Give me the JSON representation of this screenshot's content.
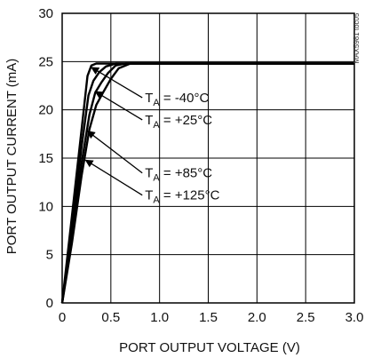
{
  "chart_data": {
    "type": "line",
    "title": "",
    "xlabel": "PORT OUTPUT VOLTAGE (V)",
    "ylabel": "PORT OUTPUT CURRENT (mA)",
    "xlim": [
      0,
      3.0
    ],
    "ylim": [
      0,
      30
    ],
    "x_ticks": [
      "0",
      "0.5",
      "1.0",
      "1.5",
      "2.0",
      "2.5",
      "3.0"
    ],
    "y_ticks": [
      "0",
      "5",
      "10",
      "15",
      "20",
      "25",
      "30"
    ],
    "grid": true,
    "series": [
      {
        "name": "T_A = -40°C",
        "points": [
          [
            0,
            0
          ],
          [
            0.1,
            9.0
          ],
          [
            0.2,
            18.0
          ],
          [
            0.26,
            23.5
          ],
          [
            0.3,
            24.6
          ],
          [
            0.35,
            24.8
          ],
          [
            0.5,
            24.8
          ],
          [
            1.0,
            24.8
          ],
          [
            2.0,
            24.8
          ],
          [
            3.0,
            24.8
          ]
        ]
      },
      {
        "name": "T_A = +25°C",
        "points": [
          [
            0,
            0
          ],
          [
            0.1,
            8.0
          ],
          [
            0.2,
            16.2
          ],
          [
            0.27,
            21.5
          ],
          [
            0.32,
            23.0
          ],
          [
            0.38,
            23.9
          ],
          [
            0.45,
            24.5
          ],
          [
            0.55,
            24.8
          ],
          [
            1.0,
            24.8
          ],
          [
            2.0,
            24.8
          ],
          [
            3.0,
            24.8
          ]
        ]
      },
      {
        "name": "T_A = +85°C",
        "points": [
          [
            0,
            0
          ],
          [
            0.1,
            7.0
          ],
          [
            0.2,
            14.5
          ],
          [
            0.28,
            19.5
          ],
          [
            0.34,
            21.8
          ],
          [
            0.4,
            22.8
          ],
          [
            0.47,
            23.8
          ],
          [
            0.55,
            24.6
          ],
          [
            0.65,
            24.8
          ],
          [
            1.0,
            24.8
          ],
          [
            2.0,
            24.8
          ],
          [
            3.0,
            24.8
          ]
        ]
      },
      {
        "name": "T_A = +125°C",
        "points": [
          [
            0,
            0
          ],
          [
            0.1,
            6.2
          ],
          [
            0.2,
            13.2
          ],
          [
            0.28,
            18.0
          ],
          [
            0.35,
            20.5
          ],
          [
            0.42,
            21.8
          ],
          [
            0.5,
            23.2
          ],
          [
            0.58,
            24.3
          ],
          [
            0.7,
            24.8
          ],
          [
            1.0,
            24.8
          ],
          [
            2.0,
            24.8
          ],
          [
            3.0,
            24.8
          ]
        ]
      }
    ],
    "annotations": [
      {
        "main": "T",
        "sub": "A",
        "rest": " = -40°C",
        "label_xy": [
          0.85,
          20.8
        ],
        "arrow_to": [
          0.3,
          24.4
        ]
      },
      {
        "main": "T",
        "sub": "A",
        "rest": " = +25°C",
        "label_xy": [
          0.85,
          18.5
        ],
        "arrow_to": [
          0.34,
          21.9
        ]
      },
      {
        "main": "T",
        "sub": "A",
        "rest": " = +85°C",
        "label_xy": [
          0.85,
          13.0
        ],
        "arrow_to": [
          0.26,
          17.8
        ]
      },
      {
        "main": "T",
        "sub": "A",
        "rest": " = +125°C",
        "label_xy": [
          0.85,
          10.7
        ],
        "arrow_to": [
          0.24,
          14.8
        ]
      }
    ],
    "watermark": "MAX5981 toc05"
  }
}
